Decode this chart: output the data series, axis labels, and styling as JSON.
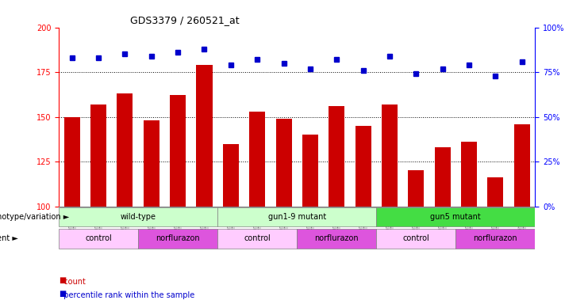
{
  "title": "GDS3379 / 260521_at",
  "samples": [
    "GSM323075",
    "GSM323076",
    "GSM323077",
    "GSM323078",
    "GSM323079",
    "GSM323080",
    "GSM323081",
    "GSM323082",
    "GSM323083",
    "GSM323084",
    "GSM323085",
    "GSM323086",
    "GSM323087",
    "GSM323088",
    "GSM323089",
    "GSM323090",
    "GSM323091",
    "GSM323092"
  ],
  "counts": [
    150,
    157,
    163,
    148,
    162,
    179,
    135,
    153,
    149,
    140,
    156,
    145,
    157,
    120,
    133,
    136,
    116,
    146
  ],
  "percentile_ranks": [
    83,
    83,
    85,
    84,
    86,
    88,
    79,
    82,
    80,
    77,
    82,
    76,
    84,
    74,
    77,
    79,
    73,
    81
  ],
  "ylim_left": [
    100,
    200
  ],
  "ylim_right": [
    0,
    100
  ],
  "yticks_left": [
    100,
    125,
    150,
    175,
    200
  ],
  "yticks_right": [
    0,
    25,
    50,
    75,
    100
  ],
  "bar_color": "#cc0000",
  "dot_color": "#0000cc",
  "background_color": "#ffffff",
  "genotype_groups": [
    {
      "label": "wild-type",
      "start": 0,
      "end": 5,
      "color": "#ccffcc"
    },
    {
      "label": "gun1-9 mutant",
      "start": 6,
      "end": 11,
      "color": "#ccffcc"
    },
    {
      "label": "gun5 mutant",
      "start": 12,
      "end": 17,
      "color": "#44dd44"
    }
  ],
  "agent_groups": [
    {
      "label": "control",
      "start": 0,
      "end": 2,
      "color": "#ffccff"
    },
    {
      "label": "norflurazon",
      "start": 3,
      "end": 5,
      "color": "#dd55dd"
    },
    {
      "label": "control",
      "start": 6,
      "end": 8,
      "color": "#ffccff"
    },
    {
      "label": "norflurazon",
      "start": 9,
      "end": 11,
      "color": "#dd55dd"
    },
    {
      "label": "control",
      "start": 12,
      "end": 14,
      "color": "#ffccff"
    },
    {
      "label": "norflurazon",
      "start": 15,
      "end": 17,
      "color": "#dd55dd"
    }
  ],
  "legend_count_color": "#cc0000",
  "legend_dot_color": "#0000cc",
  "x_tick_bg": "#dddddd"
}
